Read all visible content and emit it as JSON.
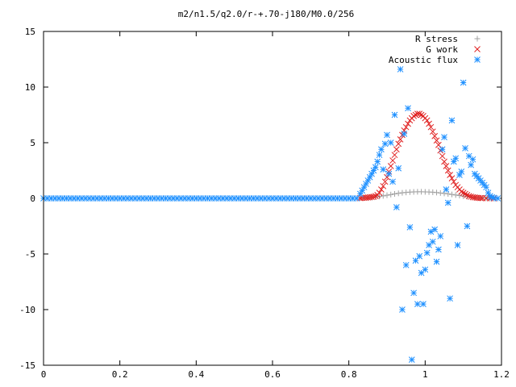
{
  "chart_data": {
    "type": "scatter",
    "title": "m2/n1.5/q2.0/r-+.70-j180/M0.0/256",
    "xlabel": "",
    "ylabel": "",
    "xlim": [
      0,
      1.2
    ],
    "ylim": [
      -15,
      15
    ],
    "xticks": [
      0,
      0.2,
      0.4,
      0.6,
      0.8,
      1,
      1.2
    ],
    "xtick_labels": [
      "0",
      "0.2",
      "0.4",
      "0.6",
      "0.8",
      "1",
      "1.2"
    ],
    "yticks": [
      -15,
      -10,
      -5,
      0,
      5,
      10,
      15
    ],
    "ytick_labels": [
      "-15",
      "-10",
      "-5",
      "0",
      "5",
      "10",
      "15"
    ],
    "grid": false,
    "legend_position": "top-right",
    "series": [
      {
        "name": "R stress",
        "marker": "plus",
        "color": "#a0a0a0",
        "points": [
          [
            0.83,
            0.02
          ],
          [
            0.84,
            0.03
          ],
          [
            0.85,
            0.05
          ],
          [
            0.86,
            0.08
          ],
          [
            0.87,
            0.12
          ],
          [
            0.88,
            0.17
          ],
          [
            0.89,
            0.22
          ],
          [
            0.9,
            0.28
          ],
          [
            0.91,
            0.34
          ],
          [
            0.92,
            0.4
          ],
          [
            0.93,
            0.45
          ],
          [
            0.94,
            0.5
          ],
          [
            0.95,
            0.53
          ],
          [
            0.96,
            0.56
          ],
          [
            0.97,
            0.58
          ],
          [
            0.98,
            0.59
          ],
          [
            0.99,
            0.59
          ],
          [
            1.0,
            0.58
          ],
          [
            1.01,
            0.57
          ],
          [
            1.02,
            0.55
          ],
          [
            1.03,
            0.52
          ],
          [
            1.04,
            0.48
          ],
          [
            1.05,
            0.44
          ],
          [
            1.06,
            0.4
          ],
          [
            1.07,
            0.35
          ],
          [
            1.08,
            0.3
          ],
          [
            1.09,
            0.25
          ],
          [
            1.1,
            0.2
          ],
          [
            1.11,
            0.16
          ],
          [
            1.12,
            0.12
          ],
          [
            1.13,
            0.08
          ],
          [
            1.14,
            0.05
          ],
          [
            1.15,
            0.03
          ],
          [
            1.16,
            0.02
          ],
          [
            1.17,
            0.01
          ],
          [
            1.18,
            0.0
          ]
        ]
      },
      {
        "name": "G work",
        "marker": "cross",
        "color": "#e02020",
        "points": [
          [
            0.83,
            0.02
          ],
          [
            0.835,
            0.04
          ],
          [
            0.84,
            0.05
          ],
          [
            0.845,
            0.06
          ],
          [
            0.85,
            0.08
          ],
          [
            0.855,
            0.1
          ],
          [
            0.86,
            0.12
          ],
          [
            0.865,
            0.15
          ],
          [
            0.87,
            0.2
          ],
          [
            0.875,
            0.3
          ],
          [
            0.88,
            0.5
          ],
          [
            0.885,
            0.8
          ],
          [
            0.89,
            1.1
          ],
          [
            0.895,
            1.5
          ],
          [
            0.9,
            1.9
          ],
          [
            0.905,
            2.4
          ],
          [
            0.91,
            2.9
          ],
          [
            0.915,
            3.4
          ],
          [
            0.92,
            3.9
          ],
          [
            0.925,
            4.4
          ],
          [
            0.93,
            4.9
          ],
          [
            0.935,
            5.3
          ],
          [
            0.94,
            5.7
          ],
          [
            0.945,
            6.1
          ],
          [
            0.95,
            6.4
          ],
          [
            0.955,
            6.7
          ],
          [
            0.96,
            7.0
          ],
          [
            0.965,
            7.2
          ],
          [
            0.97,
            7.4
          ],
          [
            0.975,
            7.5
          ],
          [
            0.98,
            7.6
          ],
          [
            0.985,
            7.6
          ],
          [
            0.99,
            7.5
          ],
          [
            0.995,
            7.4
          ],
          [
            1.0,
            7.2
          ],
          [
            1.005,
            7.0
          ],
          [
            1.01,
            6.7
          ],
          [
            1.015,
            6.4
          ],
          [
            1.02,
            6.0
          ],
          [
            1.025,
            5.6
          ],
          [
            1.03,
            5.2
          ],
          [
            1.035,
            4.8
          ],
          [
            1.04,
            4.3
          ],
          [
            1.045,
            3.8
          ],
          [
            1.05,
            3.3
          ],
          [
            1.055,
            2.9
          ],
          [
            1.06,
            2.5
          ],
          [
            1.065,
            2.1
          ],
          [
            1.07,
            1.8
          ],
          [
            1.075,
            1.5
          ],
          [
            1.08,
            1.2
          ],
          [
            1.085,
            1.0
          ],
          [
            1.09,
            0.8
          ],
          [
            1.095,
            0.6
          ],
          [
            1.1,
            0.5
          ],
          [
            1.105,
            0.4
          ],
          [
            1.11,
            0.3
          ],
          [
            1.115,
            0.2
          ],
          [
            1.12,
            0.15
          ],
          [
            1.125,
            0.1
          ],
          [
            1.13,
            0.08
          ],
          [
            1.135,
            0.05
          ],
          [
            1.14,
            0.04
          ],
          [
            1.145,
            0.03
          ],
          [
            1.15,
            0.02
          ],
          [
            1.16,
            0.01
          ],
          [
            1.17,
            0.01
          ],
          [
            1.18,
            0.0
          ]
        ]
      },
      {
        "name": "Acoustic flux",
        "marker": "star",
        "color": "#1e90ff",
        "points": [
          [
            0.0,
            0
          ],
          [
            0.01,
            0
          ],
          [
            0.02,
            0
          ],
          [
            0.03,
            0
          ],
          [
            0.04,
            0
          ],
          [
            0.05,
            0
          ],
          [
            0.06,
            0
          ],
          [
            0.07,
            0
          ],
          [
            0.08,
            0
          ],
          [
            0.09,
            0
          ],
          [
            0.1,
            0
          ],
          [
            0.11,
            0
          ],
          [
            0.12,
            0
          ],
          [
            0.13,
            0
          ],
          [
            0.14,
            0
          ],
          [
            0.15,
            0
          ],
          [
            0.16,
            0
          ],
          [
            0.17,
            0
          ],
          [
            0.18,
            0
          ],
          [
            0.19,
            0
          ],
          [
            0.2,
            0
          ],
          [
            0.21,
            0
          ],
          [
            0.22,
            0
          ],
          [
            0.23,
            0
          ],
          [
            0.24,
            0
          ],
          [
            0.25,
            0
          ],
          [
            0.26,
            0
          ],
          [
            0.27,
            0
          ],
          [
            0.28,
            0
          ],
          [
            0.29,
            0
          ],
          [
            0.3,
            0
          ],
          [
            0.31,
            0
          ],
          [
            0.32,
            0
          ],
          [
            0.33,
            0
          ],
          [
            0.34,
            0
          ],
          [
            0.35,
            0
          ],
          [
            0.36,
            0
          ],
          [
            0.37,
            0
          ],
          [
            0.38,
            0
          ],
          [
            0.39,
            0
          ],
          [
            0.4,
            0
          ],
          [
            0.41,
            0
          ],
          [
            0.42,
            0
          ],
          [
            0.43,
            0
          ],
          [
            0.44,
            0
          ],
          [
            0.45,
            0
          ],
          [
            0.46,
            0
          ],
          [
            0.47,
            0
          ],
          [
            0.48,
            0
          ],
          [
            0.49,
            0
          ],
          [
            0.5,
            0
          ],
          [
            0.51,
            0
          ],
          [
            0.52,
            0
          ],
          [
            0.53,
            0
          ],
          [
            0.54,
            0
          ],
          [
            0.55,
            0
          ],
          [
            0.56,
            0
          ],
          [
            0.57,
            0
          ],
          [
            0.58,
            0
          ],
          [
            0.59,
            0
          ],
          [
            0.6,
            0
          ],
          [
            0.61,
            0
          ],
          [
            0.62,
            0
          ],
          [
            0.63,
            0
          ],
          [
            0.64,
            0
          ],
          [
            0.65,
            0
          ],
          [
            0.66,
            0
          ],
          [
            0.67,
            0
          ],
          [
            0.68,
            0
          ],
          [
            0.69,
            0
          ],
          [
            0.7,
            0
          ],
          [
            0.71,
            0
          ],
          [
            0.72,
            0
          ],
          [
            0.73,
            0
          ],
          [
            0.74,
            0
          ],
          [
            0.75,
            0
          ],
          [
            0.76,
            0
          ],
          [
            0.77,
            0
          ],
          [
            0.78,
            0
          ],
          [
            0.79,
            0
          ],
          [
            0.8,
            0
          ],
          [
            0.81,
            0
          ],
          [
            0.82,
            0
          ],
          [
            0.83,
            0.4
          ],
          [
            0.835,
            0.7
          ],
          [
            0.84,
            1.0
          ],
          [
            0.845,
            1.3
          ],
          [
            0.85,
            1.6
          ],
          [
            0.855,
            1.9
          ],
          [
            0.86,
            2.2
          ],
          [
            0.865,
            2.5
          ],
          [
            0.87,
            2.8
          ],
          [
            0.875,
            3.3
          ],
          [
            0.88,
            3.9
          ],
          [
            0.885,
            4.4
          ],
          [
            0.89,
            2.6
          ],
          [
            0.895,
            4.9
          ],
          [
            0.9,
            5.7
          ],
          [
            0.905,
            2.2
          ],
          [
            0.91,
            5.0
          ],
          [
            0.915,
            1.5
          ],
          [
            0.92,
            7.5
          ],
          [
            0.925,
            -0.8
          ],
          [
            0.93,
            2.7
          ],
          [
            0.935,
            11.6
          ],
          [
            0.94,
            -10.0
          ],
          [
            0.945,
            5.8
          ],
          [
            0.95,
            -6.0
          ],
          [
            0.955,
            8.1
          ],
          [
            0.96,
            -2.6
          ],
          [
            0.965,
            -14.5
          ],
          [
            0.97,
            -8.5
          ],
          [
            0.975,
            -5.6
          ],
          [
            0.98,
            -9.5
          ],
          [
            0.985,
            -5.2
          ],
          [
            0.99,
            -6.7
          ],
          [
            0.995,
            -9.5
          ],
          [
            1.0,
            -6.4
          ],
          [
            1.005,
            -4.9
          ],
          [
            1.01,
            -4.2
          ],
          [
            1.015,
            -3.0
          ],
          [
            1.02,
            -3.9
          ],
          [
            1.025,
            -2.8
          ],
          [
            1.03,
            -5.7
          ],
          [
            1.035,
            -4.6
          ],
          [
            1.04,
            -3.4
          ],
          [
            1.045,
            4.4
          ],
          [
            1.05,
            5.5
          ],
          [
            1.055,
            0.8
          ],
          [
            1.06,
            -0.4
          ],
          [
            1.065,
            -9.0
          ],
          [
            1.07,
            7.0
          ],
          [
            1.075,
            3.3
          ],
          [
            1.08,
            3.6
          ],
          [
            1.085,
            -4.2
          ],
          [
            1.09,
            2.1
          ],
          [
            1.095,
            2.4
          ],
          [
            1.1,
            10.4
          ],
          [
            1.105,
            4.5
          ],
          [
            1.11,
            -2.5
          ],
          [
            1.115,
            3.8
          ],
          [
            1.12,
            3.0
          ],
          [
            1.125,
            3.5
          ],
          [
            1.13,
            2.2
          ],
          [
            1.135,
            2.0
          ],
          [
            1.14,
            1.8
          ],
          [
            1.145,
            1.6
          ],
          [
            1.15,
            1.4
          ],
          [
            1.155,
            1.2
          ],
          [
            1.16,
            1.0
          ],
          [
            1.165,
            0.5
          ],
          [
            1.17,
            0.2
          ],
          [
            1.175,
            0.1
          ],
          [
            1.18,
            0.05
          ],
          [
            1.19,
            0.0
          ]
        ]
      }
    ]
  }
}
